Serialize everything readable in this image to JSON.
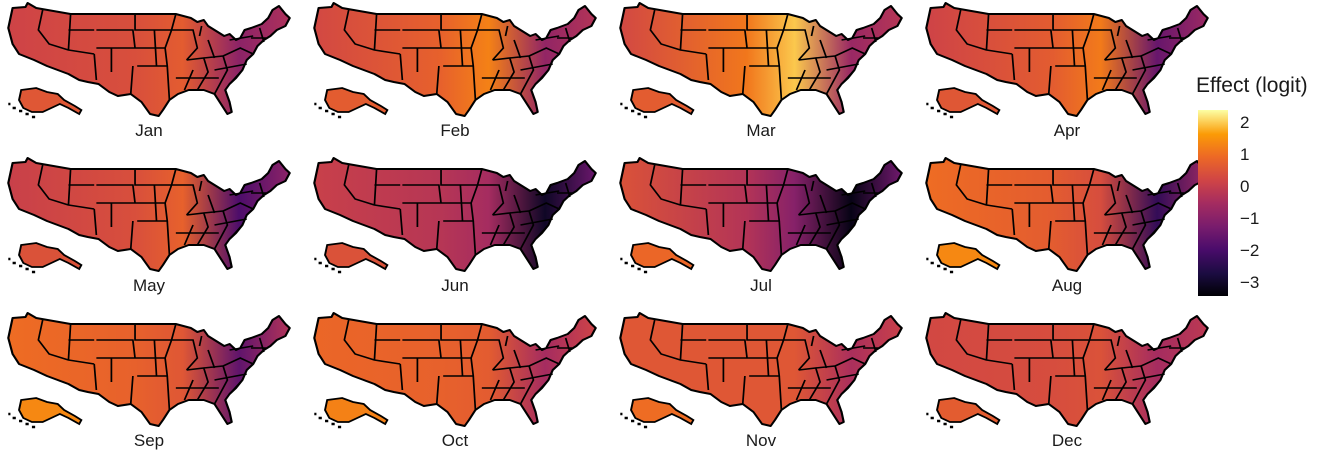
{
  "legend": {
    "title": "Effect (logit)",
    "ticks": [
      {
        "value": 2,
        "label": "2"
      },
      {
        "value": 1,
        "label": "1"
      },
      {
        "value": 0,
        "label": "0"
      },
      {
        "value": -1,
        "label": "−1"
      },
      {
        "value": -2,
        "label": "−2"
      },
      {
        "value": -3,
        "label": "−3"
      }
    ],
    "range": [
      -3.4,
      2.4
    ]
  },
  "colors": {
    "scale_low": "#000004",
    "scale_mid": "#b73779",
    "scale_high": "#fcffa4",
    "boundary": "#000000"
  },
  "panels": [
    {
      "label": "Jan",
      "west": 0.2,
      "east": -0.9,
      "center": 0.7
    },
    {
      "label": "Feb",
      "west": 0.3,
      "east": -0.8,
      "center": 1.3
    },
    {
      "label": "Mar",
      "west": 0.3,
      "east": -0.7,
      "center": 2.0
    },
    {
      "label": "Apr",
      "west": 0.2,
      "east": -1.5,
      "center": 1.2
    },
    {
      "label": "May",
      "west": 0.1,
      "east": -1.9,
      "center": 0.8
    },
    {
      "label": "Jun",
      "west": 0.1,
      "east": -3.0,
      "center": -0.5
    },
    {
      "label": "Jul",
      "west": 0.5,
      "east": -3.2,
      "center": -1.0
    },
    {
      "label": "Aug",
      "west": 1.0,
      "east": -2.3,
      "center": 0.4
    },
    {
      "label": "Sep",
      "west": 1.0,
      "east": -1.6,
      "center": 0.6
    },
    {
      "label": "Oct",
      "west": 0.9,
      "east": -0.5,
      "center": 0.7
    },
    {
      "label": "Nov",
      "west": 0.6,
      "east": -0.4,
      "center": 0.6
    },
    {
      "label": "Dec",
      "west": 0.3,
      "east": -0.5,
      "center": 0.5
    }
  ]
}
